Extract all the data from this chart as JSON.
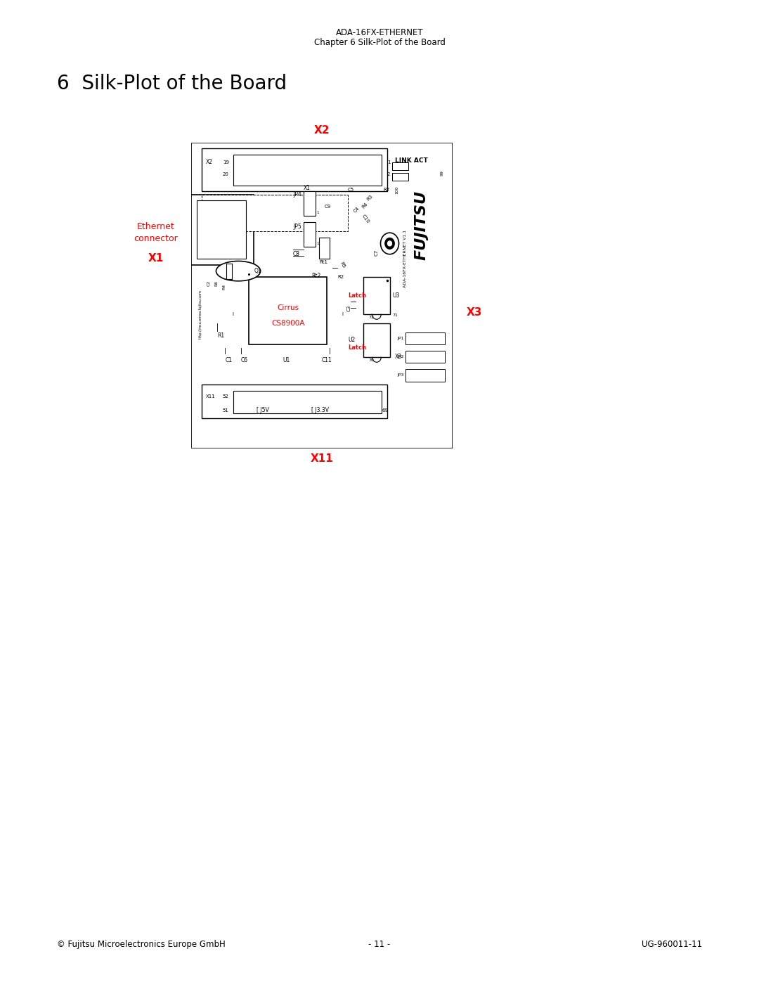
{
  "page_title_top": "ADA-16FX-ETHERNET",
  "page_subtitle_top": "Chapter 6 Silk-Plot of the Board",
  "chapter_heading": "6  Silk-Plot of the Board",
  "footer_left": "© Fujitsu Microelectronics Europe GmbH",
  "footer_center": "- 11 -",
  "footer_right": "UG-960011-11",
  "bg_color": "#ffffff",
  "text_color": "#000000",
  "red_color": "#ff0000"
}
